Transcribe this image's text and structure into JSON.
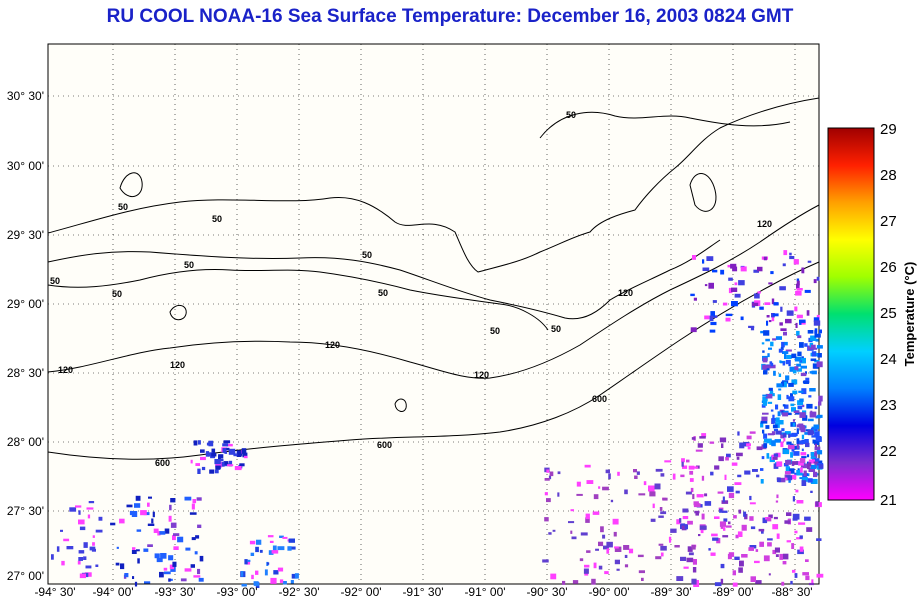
{
  "title": "RU COOL  NOAA-16  Sea Surface Temperature:  December 16, 2003 0824 GMT",
  "x_ticks": [
    "-94° 30'",
    "-94° 00'",
    "-93° 30'",
    "-93° 00'",
    "-92° 30'",
    "-92° 00'",
    "-91° 30'",
    "-91° 00'",
    "-90° 30'",
    "-90° 00'",
    "-89° 30'",
    "-89° 00'",
    "-88° 30'"
  ],
  "y_ticks": [
    "30° 30'",
    "30° 00'",
    "29° 30'",
    "29° 00'",
    "28° 30'",
    "28° 00'",
    "27° 30'",
    "27° 00'"
  ],
  "contour_labels": [
    "50",
    "50",
    "50",
    "50",
    "50",
    "50",
    "50",
    "50",
    "50",
    "50",
    "120",
    "120",
    "120",
    "120",
    "120",
    "120",
    "600",
    "600",
    "600"
  ],
  "colorbar": {
    "title": "Temperature (°C)",
    "ticks": [
      "29",
      "28",
      "27",
      "26",
      "25",
      "24",
      "23",
      "22",
      "21"
    ],
    "colors": [
      "#ff00ff",
      "#7a2ccc",
      "#0000e0",
      "#0080ff",
      "#00d0ff",
      "#00e070",
      "#a0ff00",
      "#ffff00",
      "#ffa000",
      "#ff2000",
      "#a00000"
    ]
  }
}
